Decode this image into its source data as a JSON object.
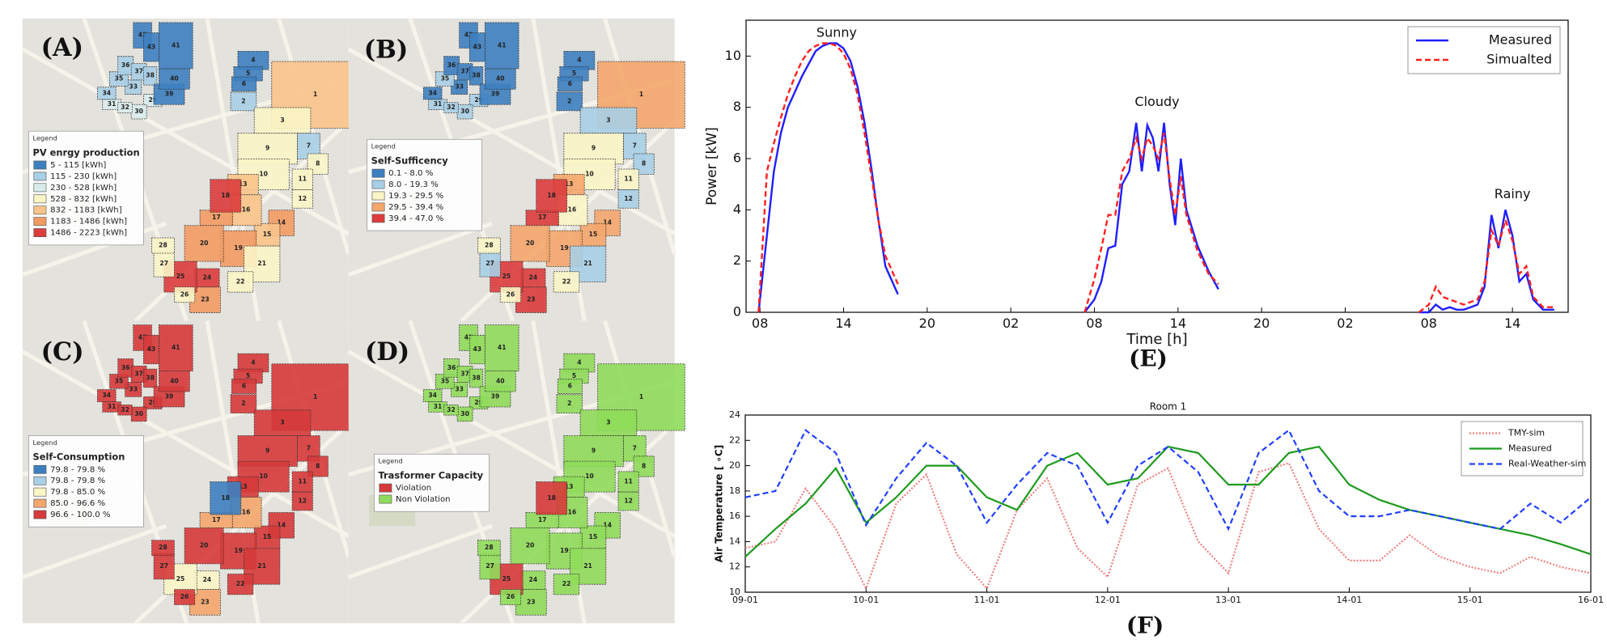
{
  "parcels": [
    "1",
    "2",
    "3",
    "4",
    "5",
    "6",
    "7",
    "8",
    "9",
    "10",
    "11",
    "12",
    "13",
    "14",
    "15",
    "16",
    "17",
    "18",
    "19",
    "20",
    "21",
    "22",
    "23",
    "24",
    "25",
    "26",
    "27",
    "28",
    "29",
    "30",
    "31",
    "32",
    "33",
    "34",
    "35",
    "36",
    "37",
    "38",
    "39",
    "40",
    "41",
    "42",
    "43"
  ],
  "panels": [
    {
      "label": "(A)",
      "legend_heading": "Legend",
      "legend_title": "PV enrgy production",
      "legend_items": [
        "5 - 115  [kWh]",
        "115 - 230  [kWh]",
        "230 - 528  [kWh]",
        "528 - 832  [kWh]",
        "832 - 1183  [kWh]",
        "1183 - 1486  [kWh]",
        "1486 - 2223  [kWh]"
      ],
      "legend_colors": [
        "#3d7fc0",
        "#a8cfe6",
        "#d9ecec",
        "#fbf5c6",
        "#f9c48a",
        "#f29b63",
        "#dc3c3c"
      ],
      "parcel_classes": [
        4,
        1,
        3,
        0,
        0,
        0,
        1,
        3,
        3,
        3,
        3,
        3,
        4,
        5,
        4,
        4,
        5,
        6,
        5,
        5,
        3,
        3,
        5,
        6,
        6,
        3,
        3,
        3,
        2,
        2,
        2,
        2,
        1,
        1,
        1,
        1,
        1,
        1,
        0,
        0,
        0,
        0,
        0
      ]
    },
    {
      "label": "(B)",
      "legend_heading": "Legend",
      "legend_title": "Self-Sufficency",
      "legend_items": [
        "0.1 - 8.0 %",
        "8.0 - 19.3 %",
        "19.3 - 29.5 %",
        "29.5 - 39.4 %",
        "39.4 - 47.0 %"
      ],
      "legend_colors": [
        "#3d7fc0",
        "#a8cfe6",
        "#fbf5c6",
        "#f4a66b",
        "#dc3c3c"
      ],
      "parcel_classes": [
        3,
        0,
        1,
        0,
        0,
        0,
        1,
        1,
        2,
        2,
        2,
        1,
        3,
        3,
        3,
        2,
        4,
        4,
        3,
        3,
        1,
        2,
        4,
        4,
        4,
        2,
        1,
        2,
        1,
        1,
        1,
        1,
        0,
        0,
        1,
        0,
        0,
        0,
        0,
        0,
        0,
        0,
        0
      ]
    },
    {
      "label": "(C)",
      "legend_heading": "Legend",
      "legend_title": "Self-Consumption",
      "legend_items": [
        "79.8 - 79.8 %",
        "79.8 - 79.8 %",
        "79.8 - 85.0 %",
        "85.0 - 96.6 %",
        "96.6 - 100.0 %"
      ],
      "legend_colors": [
        "#3d7fc0",
        "#a8cfe6",
        "#fbf5c6",
        "#f4a66b",
        "#d63a3a"
      ],
      "parcel_classes": [
        4,
        4,
        4,
        4,
        4,
        4,
        4,
        4,
        4,
        4,
        4,
        4,
        4,
        4,
        4,
        3,
        3,
        0,
        4,
        4,
        4,
        4,
        3,
        2,
        2,
        4,
        4,
        4,
        4,
        4,
        4,
        4,
        4,
        4,
        4,
        4,
        4,
        4,
        4,
        4,
        4,
        4,
        4
      ]
    },
    {
      "label": "(D)",
      "legend_heading": "Legend",
      "legend_title": "Trasformer Capacity",
      "legend_items": [
        "Violation",
        "Non Violation"
      ],
      "legend_colors": [
        "#d63a3a",
        "#8fdc5a"
      ],
      "parcel_classes": [
        1,
        1,
        1,
        1,
        1,
        1,
        1,
        1,
        1,
        1,
        1,
        1,
        1,
        1,
        1,
        1,
        1,
        0,
        1,
        1,
        1,
        1,
        1,
        1,
        0,
        1,
        1,
        1,
        1,
        1,
        1,
        1,
        1,
        1,
        1,
        1,
        1,
        1,
        1,
        1,
        1,
        1,
        1
      ]
    }
  ],
  "chart_data": [
    {
      "type": "line",
      "panel_label": "(E)",
      "xlabel": "Time [h]",
      "ylabel": "Power [kW]",
      "x": [
        7.9,
        8.5,
        9,
        9.5,
        10,
        10.5,
        11,
        11.5,
        12,
        12.5,
        13,
        13.5,
        14,
        14.5,
        15,
        15.5,
        16,
        16.5,
        17,
        17.9,
        25,
        31.3,
        32,
        32.5,
        33,
        33.5,
        34,
        34.5,
        35,
        35.4,
        35.8,
        36.2,
        36.6,
        37,
        37.4,
        37.8,
        38.2,
        38.6,
        39.4,
        40.2,
        40.9,
        48,
        55.3,
        56,
        56.5,
        57,
        57.5,
        58,
        58.5,
        59,
        59.5,
        60,
        60.5,
        61,
        61.5,
        62,
        62.5,
        63,
        63.5,
        64.2,
        65
      ],
      "series": [
        {
          "name": "Measured",
          "color": "#1f1fff",
          "style": "solid",
          "values": [
            0,
            3,
            5.5,
            7,
            8,
            8.6,
            9.2,
            9.7,
            10.2,
            10.4,
            10.5,
            10.5,
            10.3,
            9.8,
            8.8,
            7.4,
            5.6,
            3.6,
            1.8,
            0.7,
            null,
            0,
            0.5,
            1.2,
            2.5,
            2.6,
            5,
            5.5,
            7.4,
            5.5,
            7.3,
            6.8,
            5.5,
            7.4,
            5,
            3.4,
            6,
            4,
            2.6,
            1.6,
            0.9,
            null,
            0,
            0,
            0.3,
            0.1,
            0.2,
            0.1,
            0.1,
            0.2,
            0.3,
            1,
            3.8,
            2.5,
            4,
            3,
            1.2,
            1.5,
            0.5,
            0.1,
            0.1
          ]
        },
        {
          "name": "Simualted",
          "color": "#ff2020",
          "style": "dashed",
          "values": [
            0,
            5.5,
            6.6,
            7.6,
            8.5,
            9.2,
            9.8,
            10.2,
            10.4,
            10.5,
            10.5,
            10.4,
            10.1,
            9.5,
            8.5,
            7,
            5.3,
            3.6,
            2.2,
            1.1,
            null,
            0,
            1.3,
            2.5,
            3.8,
            3.8,
            5.5,
            6,
            6.8,
            6,
            6.8,
            6.5,
            6,
            7,
            5.2,
            3.8,
            5.3,
            3.8,
            2.4,
            1.5,
            1.1,
            null,
            0,
            0.3,
            1,
            0.6,
            0.5,
            0.4,
            0.3,
            0.4,
            0.5,
            1.2,
            3.2,
            2.6,
            3.6,
            2.8,
            1.5,
            1.8,
            0.6,
            0.2,
            0.2
          ]
        }
      ],
      "xlim": [
        7,
        66
      ],
      "ylim": [
        0,
        11.4
      ],
      "xticks": [
        {
          "value": 8,
          "label": "08"
        },
        {
          "value": 14,
          "label": "14"
        },
        {
          "value": 20,
          "label": "20"
        },
        {
          "value": 26,
          "label": "02"
        },
        {
          "value": 32,
          "label": "08"
        },
        {
          "value": 38,
          "label": "14"
        },
        {
          "value": 44,
          "label": "20"
        },
        {
          "value": 50,
          "label": "02"
        },
        {
          "value": 56,
          "label": "08"
        },
        {
          "value": 62,
          "label": "14"
        }
      ],
      "yticks": [
        0,
        2,
        4,
        6,
        8,
        10
      ],
      "grid": false,
      "legend": "upper right",
      "annotations": [
        {
          "text": "Sunny",
          "x": 13.5,
          "y": 10.9
        },
        {
          "text": "Cloudy",
          "x": 36.5,
          "y": 8.2
        },
        {
          "text": "Rainy",
          "x": 62,
          "y": 4.6
        }
      ]
    },
    {
      "type": "line",
      "panel_label": "(F)",
      "title": "Room 1",
      "ylabel": "Air Temperature [ ∘C]",
      "x": [
        9,
        9.25,
        9.5,
        9.75,
        10,
        10.25,
        10.5,
        10.75,
        11,
        11.25,
        11.5,
        11.75,
        12,
        12.25,
        12.5,
        12.75,
        13,
        13.25,
        13.5,
        13.75,
        14,
        14.25,
        14.5,
        14.75,
        15,
        15.25,
        15.5,
        15.75,
        16
      ],
      "series": [
        {
          "name": "TMY-sim",
          "color": "#f08080",
          "style": "dotted",
          "values": [
            13.5,
            14,
            18.2,
            15,
            10.3,
            17,
            19.3,
            13,
            10.3,
            16.5,
            19,
            13.5,
            11.2,
            18.5,
            19.8,
            14,
            11.5,
            19.5,
            20.2,
            15,
            12.5,
            12.5,
            14.5,
            12.8,
            12,
            11.5,
            12.8,
            12,
            11.5
          ]
        },
        {
          "name": "Measured",
          "color": "#1e9a1e",
          "style": "solid",
          "values": [
            12.8,
            15,
            17,
            19.8,
            15.5,
            17.5,
            20,
            20,
            17.5,
            16.5,
            20,
            21,
            18.5,
            19,
            21.5,
            21,
            18.5,
            18.5,
            21,
            21.5,
            18.5,
            17.3,
            16.5,
            16,
            15.5,
            15,
            14.5,
            13.8,
            13
          ]
        },
        {
          "name": "Real-Weather-sim",
          "color": "#2040ff",
          "style": "dashed",
          "values": [
            17.5,
            18,
            22.8,
            21,
            15.3,
            19,
            21.8,
            20,
            15.5,
            18.5,
            21,
            20,
            15.5,
            20,
            21.5,
            19.5,
            15,
            21,
            22.8,
            18,
            16,
            16,
            16.5,
            16,
            15.5,
            15,
            17,
            15.5,
            17.5
          ]
        }
      ],
      "xlim": [
        9,
        16
      ],
      "ylim": [
        10,
        24
      ],
      "xticks": [
        {
          "value": 9,
          "label": "09-01"
        },
        {
          "value": 10,
          "label": "10-01"
        },
        {
          "value": 11,
          "label": "11-01"
        },
        {
          "value": 12,
          "label": "12-01"
        },
        {
          "value": 13,
          "label": "13-01"
        },
        {
          "value": 14,
          "label": "14-01"
        },
        {
          "value": 15,
          "label": "15-01"
        },
        {
          "value": 16,
          "label": "16-01"
        }
      ],
      "yticks": [
        10,
        12,
        14,
        16,
        18,
        20,
        22,
        24
      ],
      "grid": false,
      "legend": "upper right"
    }
  ]
}
